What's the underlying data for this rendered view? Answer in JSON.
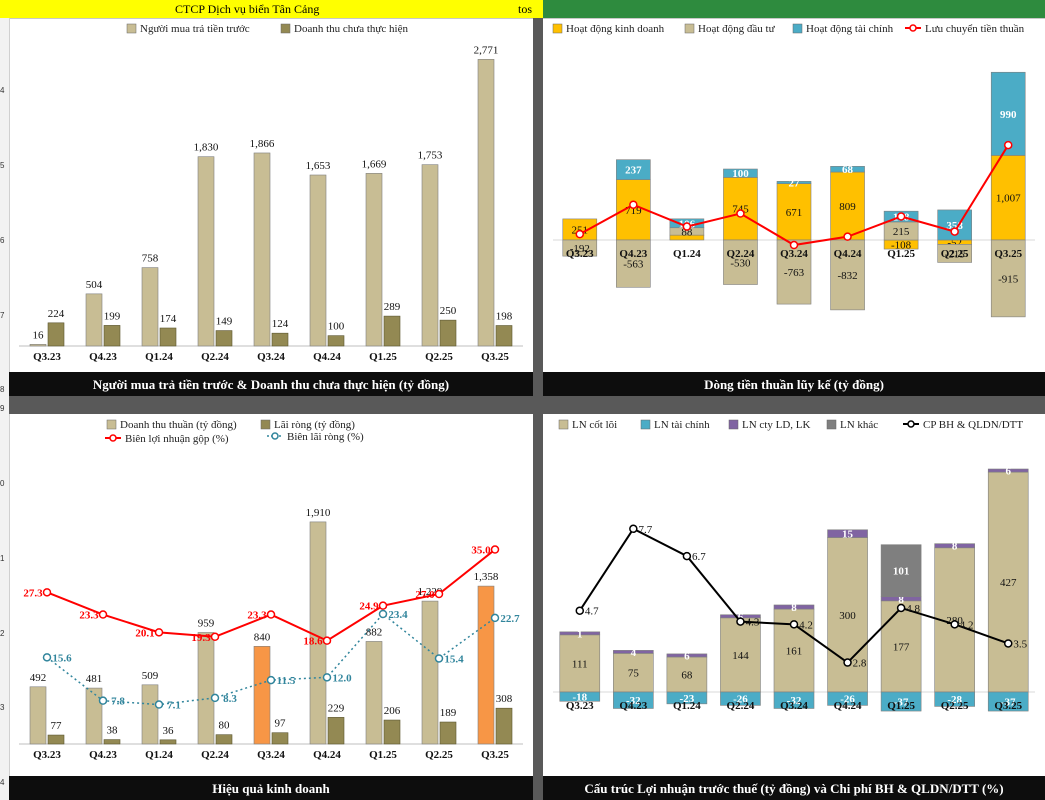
{
  "sheet": {
    "title": "CTCP Dịch vụ biển Tân Cảng",
    "ticker": "tos",
    "row_numbers": [
      "4",
      "5",
      "6",
      "7",
      "8",
      "9",
      "0",
      "1",
      "2",
      "3",
      "4"
    ]
  },
  "colors": {
    "khaki": "#c8bd94",
    "olive": "#938953",
    "orange": "#ffc000",
    "blue": "#4bacc6",
    "purple": "#8064a2",
    "grey": "#7f7f7f",
    "red": "#ff0000",
    "teal": "#31859c",
    "hiOrange": "#f79646"
  },
  "chart_data": [
    {
      "type": "bar",
      "title": "Người mua trả tiền trước & Doanh thu chưa thực hiện (tỷ đồng)",
      "categories": [
        "Q3.23",
        "Q4.23",
        "Q1.24",
        "Q2.24",
        "Q3.24",
        "Q4.24",
        "Q1.25",
        "Q2.25",
        "Q3.25"
      ],
      "series": [
        {
          "name": "Người mua trả tiền trước",
          "values": [
            16,
            504,
            758,
            1830,
            1866,
            1653,
            1669,
            1753,
            2771
          ]
        },
        {
          "name": "Doanh thu chưa thực hiện",
          "values": [
            224,
            199,
            174,
            149,
            124,
            100,
            289,
            250,
            198
          ]
        }
      ],
      "labels": [
        [
          "16",
          "504",
          "758",
          "1,830",
          "1,866",
          "1,653",
          "1,669",
          "1,753",
          "2,771"
        ],
        [
          "224",
          "199",
          "174",
          "149",
          "124",
          "100",
          "289",
          "250",
          "198"
        ]
      ],
      "ylim": [
        0,
        2900
      ]
    },
    {
      "type": "bar",
      "stacked": true,
      "title": "Dòng tiền thuần lũy kế (tỷ đồng)",
      "categories": [
        "Q3.23",
        "Q4.23",
        "Q1.24",
        "Q2.24",
        "Q3.24",
        "Q4.24",
        "Q1.25",
        "Q2.25",
        "Q3.25"
      ],
      "series": [
        {
          "name": "Hoạt động kinh doanh",
          "values": [
            251,
            719,
            58,
            745,
            671,
            809,
            -108,
            -52,
            1007
          ]
        },
        {
          "name": "Hoạt động đầu tư",
          "values": [
            -192,
            -563,
            88,
            -530,
            -763,
            -832,
            215,
            -215,
            -915
          ]
        },
        {
          "name": "Hoạt động tài chính",
          "values": [
            0,
            237,
            106,
            100,
            27,
            68,
            128,
            358,
            990
          ]
        },
        {
          "name": "Lưu chuyển tiền thuần",
          "type": "line",
          "values": [
            70,
            420,
            160,
            315,
            -60,
            40,
            280,
            100,
            1130
          ]
        }
      ],
      "labels": [
        [
          "251",
          "719",
          "",
          "745",
          "671",
          "809",
          "-108",
          "-52",
          "1,007"
        ],
        [
          "-192",
          "-563",
          "88",
          "-530",
          "-763",
          "-832",
          "215",
          "-215",
          "-915"
        ],
        [
          "",
          "237",
          "106",
          "100",
          "27",
          "68",
          "128",
          "358",
          "990"
        ]
      ],
      "ylim": [
        -1000,
        2000
      ]
    },
    {
      "type": "bar",
      "title": "Hiệu quả kinh doanh",
      "categories": [
        "Q3.23",
        "Q4.23",
        "Q1.24",
        "Q2.24",
        "Q3.24",
        "Q4.24",
        "Q1.25",
        "Q2.25",
        "Q3.25"
      ],
      "series": [
        {
          "name": "Doanh thu thuần (tỷ đồng)",
          "values": [
            492,
            481,
            509,
            959,
            840,
            1910,
            882,
            1229,
            1358
          ]
        },
        {
          "name": "Lãi ròng (tỷ đồng)",
          "values": [
            77,
            38,
            36,
            80,
            97,
            229,
            206,
            189,
            308
          ]
        },
        {
          "name": "Biên lợi nhuận gộp (%)",
          "type": "line",
          "values": [
            27.3,
            23.3,
            20.1,
            19.3,
            23.3,
            18.6,
            24.9,
            27.0,
            35.0
          ]
        },
        {
          "name": "Biên lãi ròng (%)",
          "type": "line",
          "values": [
            15.6,
            7.8,
            7.1,
            8.3,
            11.5,
            12.0,
            23.4,
            15.4,
            22.7
          ]
        }
      ],
      "labels": [
        [
          "492",
          "481",
          "509",
          "959",
          "840",
          "1,910",
          "882",
          "1,229",
          "1,358"
        ],
        [
          "77",
          "38",
          "36",
          "80",
          "97",
          "229",
          "206",
          "189",
          "308"
        ],
        [
          "27.3",
          "23.3",
          "20.1",
          "19.3",
          "23.3",
          "18.6",
          "24.9",
          "27.0",
          "35.0"
        ],
        [
          "15.6",
          "7.8",
          "7.1",
          "8.3",
          "11.5",
          "12.0",
          "23.4",
          "15.4",
          "22.7"
        ]
      ],
      "highlight": [
        "Q3.24",
        "Q3.25"
      ],
      "ylim": [
        0,
        2150
      ],
      "y2lim": [
        0,
        45
      ]
    },
    {
      "type": "bar",
      "stacked": true,
      "title": "Cấu trúc Lợi nhuận trước thuế (tỷ đồng) và Chi phí BH & QLDN/DTT (%)",
      "categories": [
        "Q3.23",
        "Q4.23",
        "Q1.24",
        "Q2.24",
        "Q3.24",
        "Q4.24",
        "Q1.25",
        "Q2.25",
        "Q3.25"
      ],
      "series": [
        {
          "name": "LN cốt lõi",
          "values": [
            111,
            75,
            68,
            144,
            161,
            300,
            177,
            280,
            427
          ]
        },
        {
          "name": "LN tài chính",
          "values": [
            -18,
            -32,
            -23,
            -26,
            -32,
            -26,
            -37,
            -28,
            -37
          ]
        },
        {
          "name": "LN cty LD, LK",
          "values": [
            1,
            4,
            6,
            6,
            8,
            15,
            8,
            8,
            6
          ]
        },
        {
          "name": "LN khác",
          "values": [
            0,
            0,
            0,
            0,
            0,
            0,
            101,
            0,
            0
          ]
        },
        {
          "name": "CP BH & QLDN/DTT",
          "type": "line",
          "values": [
            4.7,
            7.7,
            6.7,
            4.3,
            4.2,
            2.8,
            4.8,
            4.2,
            3.5
          ]
        }
      ],
      "labels": [
        [
          "111",
          "75",
          "68",
          "144",
          "161",
          "300",
          "177",
          "280",
          "427"
        ],
        [
          "-18",
          "-32",
          "-23",
          "-26",
          "-32",
          "-26",
          "-37",
          "-28",
          "-37"
        ],
        [
          "1",
          "4",
          "6",
          "6",
          "8",
          "15",
          "8",
          "8",
          "6"
        ],
        [
          "",
          "",
          "",
          "",
          "",
          "",
          "101",
          "",
          ""
        ],
        [
          "4.7",
          "7.7",
          "6.7",
          "4.3",
          "4.2",
          "2.8",
          "4.8",
          "4.2",
          "3.5"
        ]
      ],
      "ylim": [
        -50,
        470
      ],
      "y2lim": [
        0,
        10
      ]
    }
  ]
}
